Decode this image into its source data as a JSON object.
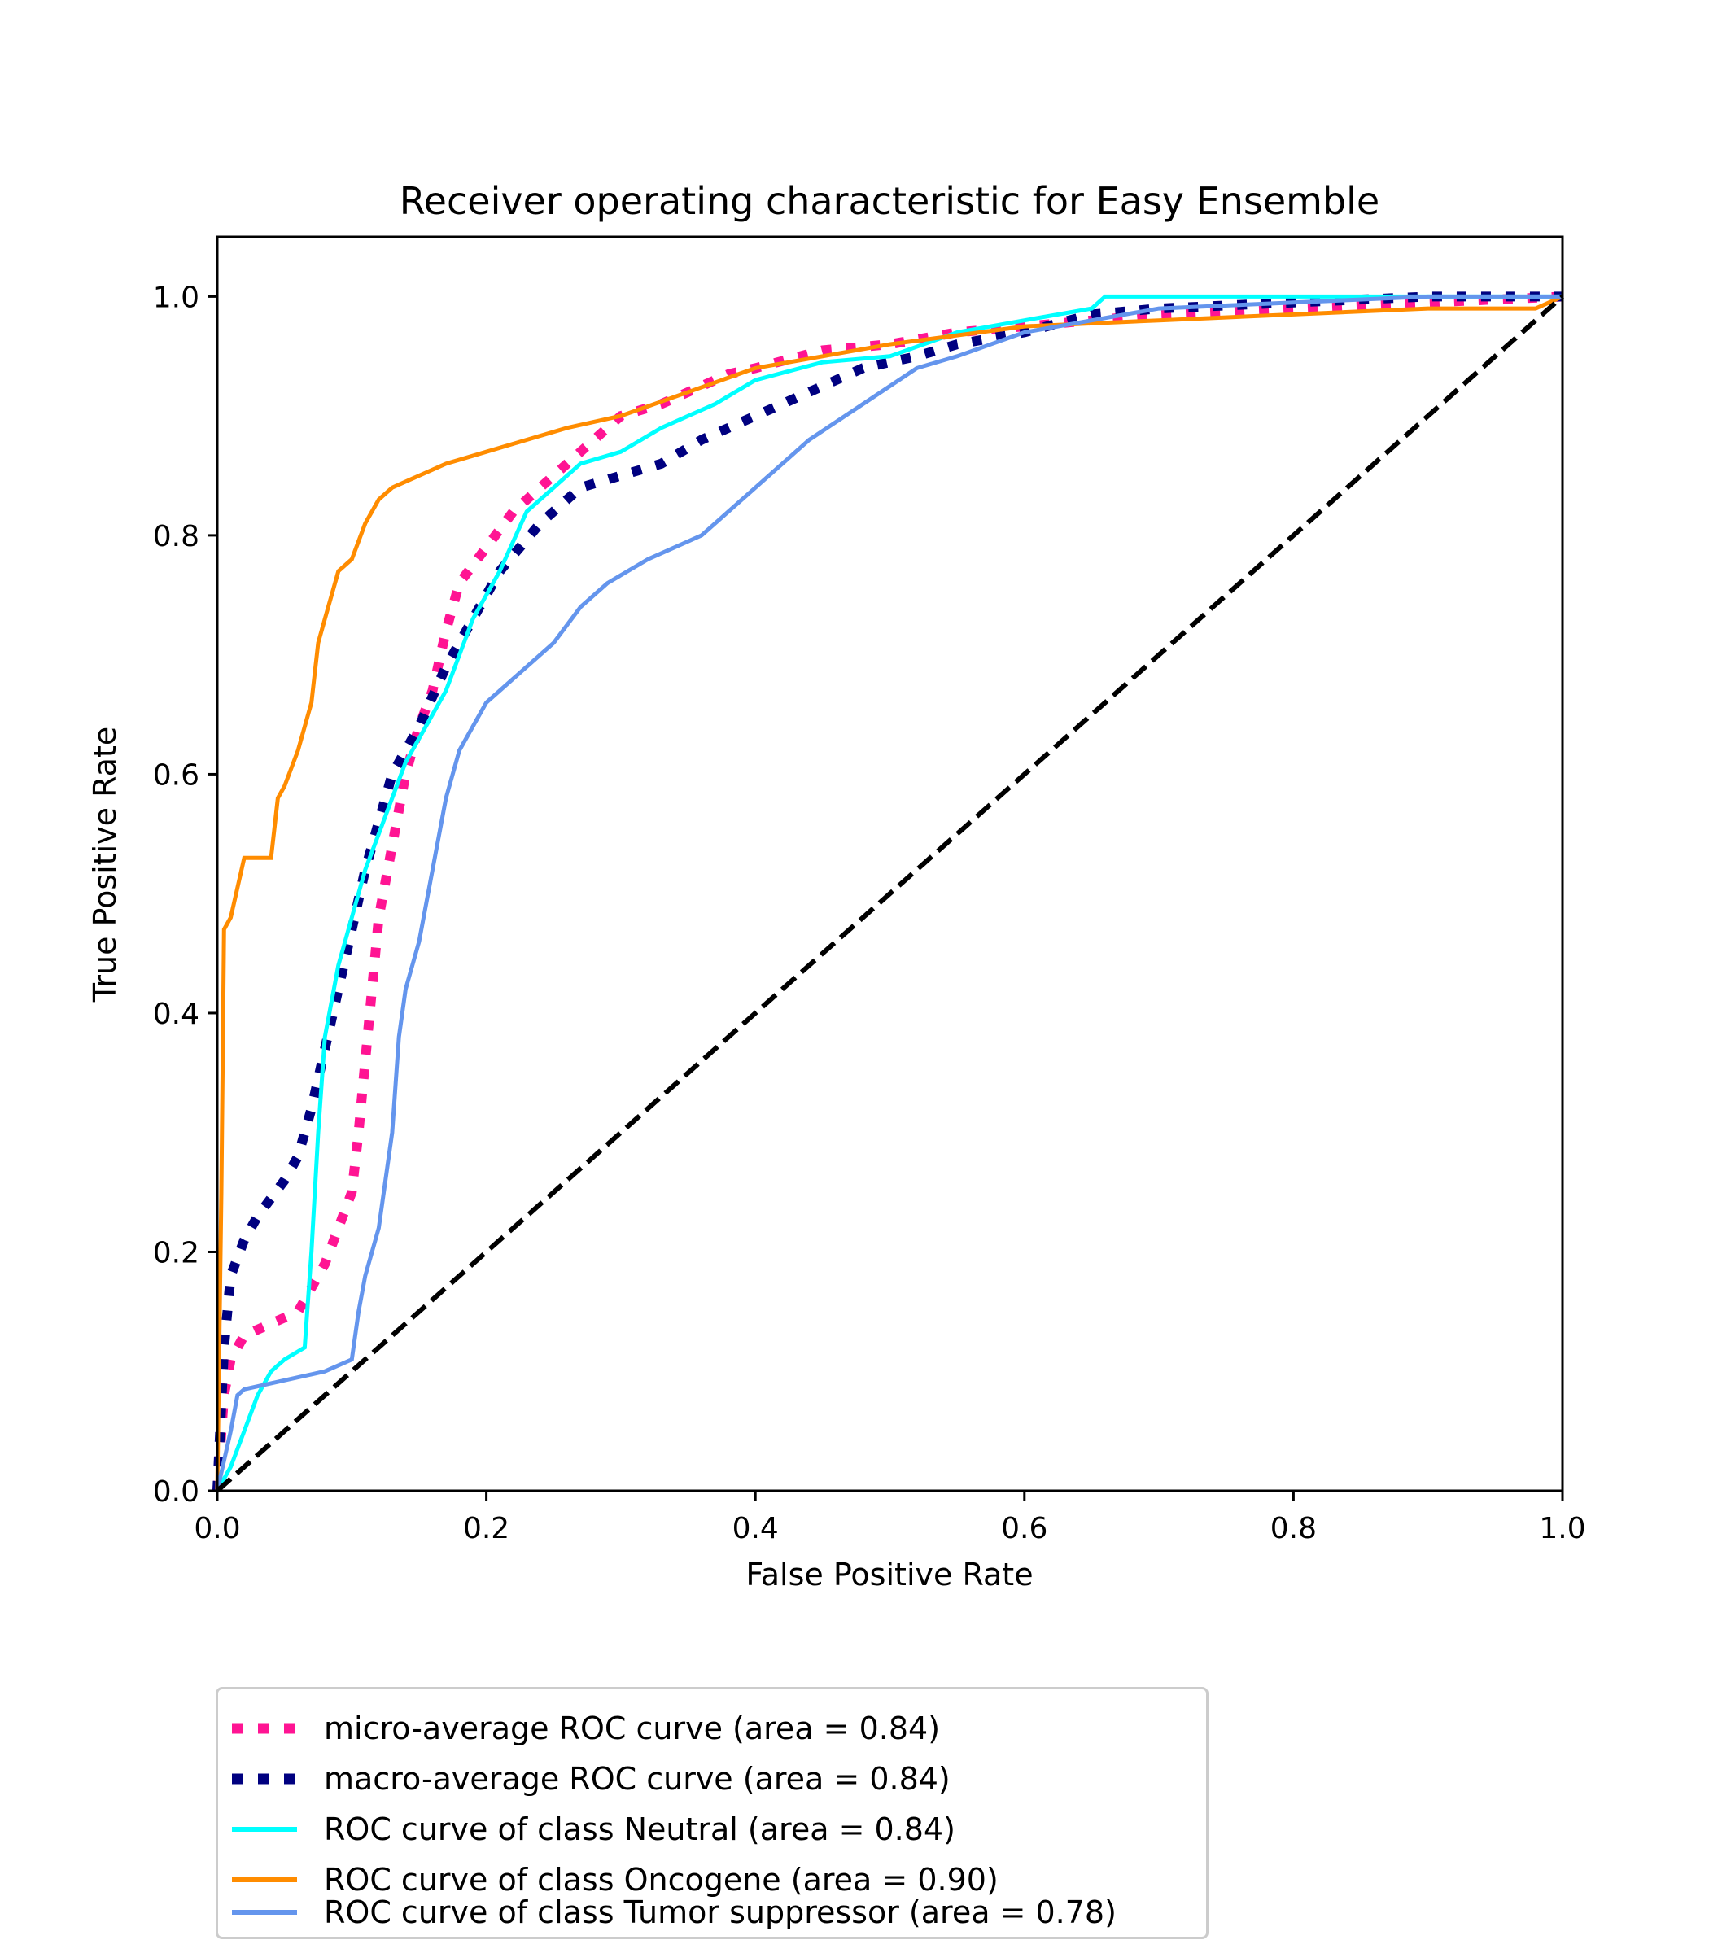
{
  "chart_data": {
    "type": "line",
    "title": "Receiver operating characteristic for Easy Ensemble",
    "xlabel": "False Positive Rate",
    "ylabel": "True Positive Rate",
    "xlim": [
      0.0,
      1.0
    ],
    "ylim": [
      0.0,
      1.05
    ],
    "xticks": [
      "0.0",
      "0.2",
      "0.4",
      "0.6",
      "0.8",
      "1.0"
    ],
    "yticks": [
      "0.0",
      "0.2",
      "0.4",
      "0.6",
      "0.8",
      "1.0"
    ],
    "grid": false,
    "legend_position": "below plot, left",
    "series": [
      {
        "name": "micro-average ROC curve (area = 0.84)",
        "color": "#ff1493",
        "style": "dotted",
        "x": [
          0.0,
          0.005,
          0.01,
          0.02,
          0.04,
          0.06,
          0.07,
          0.08,
          0.09,
          0.1,
          0.105,
          0.11,
          0.115,
          0.12,
          0.13,
          0.14,
          0.15,
          0.16,
          0.17,
          0.18,
          0.2,
          0.22,
          0.25,
          0.28,
          0.3,
          0.33,
          0.35,
          0.38,
          0.4,
          0.45,
          0.5,
          0.55,
          0.6,
          0.7,
          0.8,
          0.9,
          1.0
        ],
        "y": [
          0.0,
          0.08,
          0.11,
          0.13,
          0.14,
          0.15,
          0.17,
          0.19,
          0.22,
          0.25,
          0.3,
          0.36,
          0.42,
          0.48,
          0.54,
          0.6,
          0.64,
          0.67,
          0.72,
          0.76,
          0.79,
          0.82,
          0.85,
          0.88,
          0.9,
          0.91,
          0.92,
          0.935,
          0.94,
          0.955,
          0.96,
          0.97,
          0.975,
          0.985,
          0.99,
          0.995,
          1.0
        ]
      },
      {
        "name": "macro-average ROC curve (area = 0.84)",
        "color": "#000080",
        "style": "dotted",
        "x": [
          0.0,
          0.005,
          0.01,
          0.02,
          0.03,
          0.05,
          0.06,
          0.07,
          0.08,
          0.09,
          0.1,
          0.11,
          0.12,
          0.13,
          0.15,
          0.17,
          0.19,
          0.21,
          0.24,
          0.27,
          0.3,
          0.33,
          0.36,
          0.4,
          0.44,
          0.48,
          0.52,
          0.55,
          0.6,
          0.65,
          0.7,
          0.8,
          0.9,
          1.0
        ],
        "y": [
          0.0,
          0.12,
          0.18,
          0.21,
          0.23,
          0.26,
          0.28,
          0.32,
          0.37,
          0.42,
          0.47,
          0.52,
          0.56,
          0.6,
          0.64,
          0.69,
          0.73,
          0.77,
          0.81,
          0.84,
          0.85,
          0.86,
          0.88,
          0.9,
          0.92,
          0.94,
          0.95,
          0.96,
          0.97,
          0.985,
          0.99,
          0.995,
          1.0,
          1.0
        ]
      },
      {
        "name": "ROC curve of class Neutral (area = 0.84)",
        "color": "#00ffff",
        "style": "solid",
        "x": [
          0.0,
          0.01,
          0.02,
          0.03,
          0.04,
          0.05,
          0.065,
          0.07,
          0.075,
          0.08,
          0.09,
          0.1,
          0.11,
          0.12,
          0.13,
          0.14,
          0.15,
          0.17,
          0.19,
          0.21,
          0.23,
          0.25,
          0.27,
          0.3,
          0.33,
          0.37,
          0.4,
          0.45,
          0.5,
          0.55,
          0.6,
          0.65,
          0.66,
          0.7,
          0.8,
          0.9,
          1.0
        ],
        "y": [
          0.0,
          0.02,
          0.05,
          0.08,
          0.1,
          0.11,
          0.12,
          0.2,
          0.3,
          0.38,
          0.44,
          0.48,
          0.52,
          0.55,
          0.58,
          0.61,
          0.63,
          0.67,
          0.73,
          0.77,
          0.82,
          0.84,
          0.86,
          0.87,
          0.89,
          0.91,
          0.93,
          0.945,
          0.95,
          0.97,
          0.98,
          0.99,
          1.0,
          1.0,
          1.0,
          1.0,
          1.0
        ]
      },
      {
        "name": "ROC curve of class Oncogene (area = 0.90)",
        "color": "#ff8c00",
        "style": "solid",
        "x": [
          0.0,
          0.003,
          0.005,
          0.01,
          0.02,
          0.03,
          0.04,
          0.045,
          0.05,
          0.06,
          0.07,
          0.075,
          0.08,
          0.09,
          0.1,
          0.11,
          0.12,
          0.13,
          0.15,
          0.17,
          0.2,
          0.23,
          0.26,
          0.3,
          0.35,
          0.4,
          0.45,
          0.5,
          0.6,
          0.7,
          0.8,
          0.9,
          0.98,
          1.0
        ],
        "y": [
          0.0,
          0.25,
          0.47,
          0.48,
          0.53,
          0.53,
          0.53,
          0.58,
          0.59,
          0.62,
          0.66,
          0.71,
          0.73,
          0.77,
          0.78,
          0.81,
          0.83,
          0.84,
          0.85,
          0.86,
          0.87,
          0.88,
          0.89,
          0.9,
          0.92,
          0.94,
          0.95,
          0.96,
          0.975,
          0.98,
          0.985,
          0.99,
          0.99,
          1.0
        ]
      },
      {
        "name": "ROC curve of class Tumor suppressor (area = 0.78)",
        "color": "#6495ed",
        "style": "solid",
        "x": [
          0.0,
          0.01,
          0.015,
          0.02,
          0.04,
          0.06,
          0.08,
          0.1,
          0.105,
          0.11,
          0.12,
          0.13,
          0.135,
          0.14,
          0.15,
          0.16,
          0.17,
          0.18,
          0.2,
          0.22,
          0.25,
          0.27,
          0.29,
          0.32,
          0.36,
          0.4,
          0.44,
          0.48,
          0.52,
          0.55,
          0.6,
          0.65,
          0.7,
          0.8,
          0.9,
          1.0
        ],
        "y": [
          0.0,
          0.05,
          0.08,
          0.085,
          0.09,
          0.095,
          0.1,
          0.11,
          0.15,
          0.18,
          0.22,
          0.3,
          0.38,
          0.42,
          0.46,
          0.52,
          0.58,
          0.62,
          0.66,
          0.68,
          0.71,
          0.74,
          0.76,
          0.78,
          0.8,
          0.84,
          0.88,
          0.91,
          0.94,
          0.95,
          0.97,
          0.98,
          0.99,
          0.995,
          1.0,
          1.0
        ]
      },
      {
        "name": "",
        "color": "#000000",
        "style": "dashed",
        "x": [
          0.0,
          1.0
        ],
        "y": [
          0.0,
          1.0
        ]
      }
    ]
  },
  "legend": {
    "items": [
      {
        "label": "micro-average ROC curve (area = 0.84)",
        "color": "#ff1493",
        "style": "dotted"
      },
      {
        "label": "macro-average ROC curve (area = 0.84)",
        "color": "#000080",
        "style": "dotted"
      },
      {
        "label": "ROC curve of class Neutral (area = 0.84)",
        "color": "#00ffff",
        "style": "solid"
      },
      {
        "label": "ROC curve of class Oncogene (area = 0.90)",
        "color": "#ff8c00",
        "style": "solid"
      },
      {
        "label": "ROC curve of class Tumor suppressor (area = 0.78)",
        "color": "#6495ed",
        "style": "solid"
      }
    ]
  }
}
